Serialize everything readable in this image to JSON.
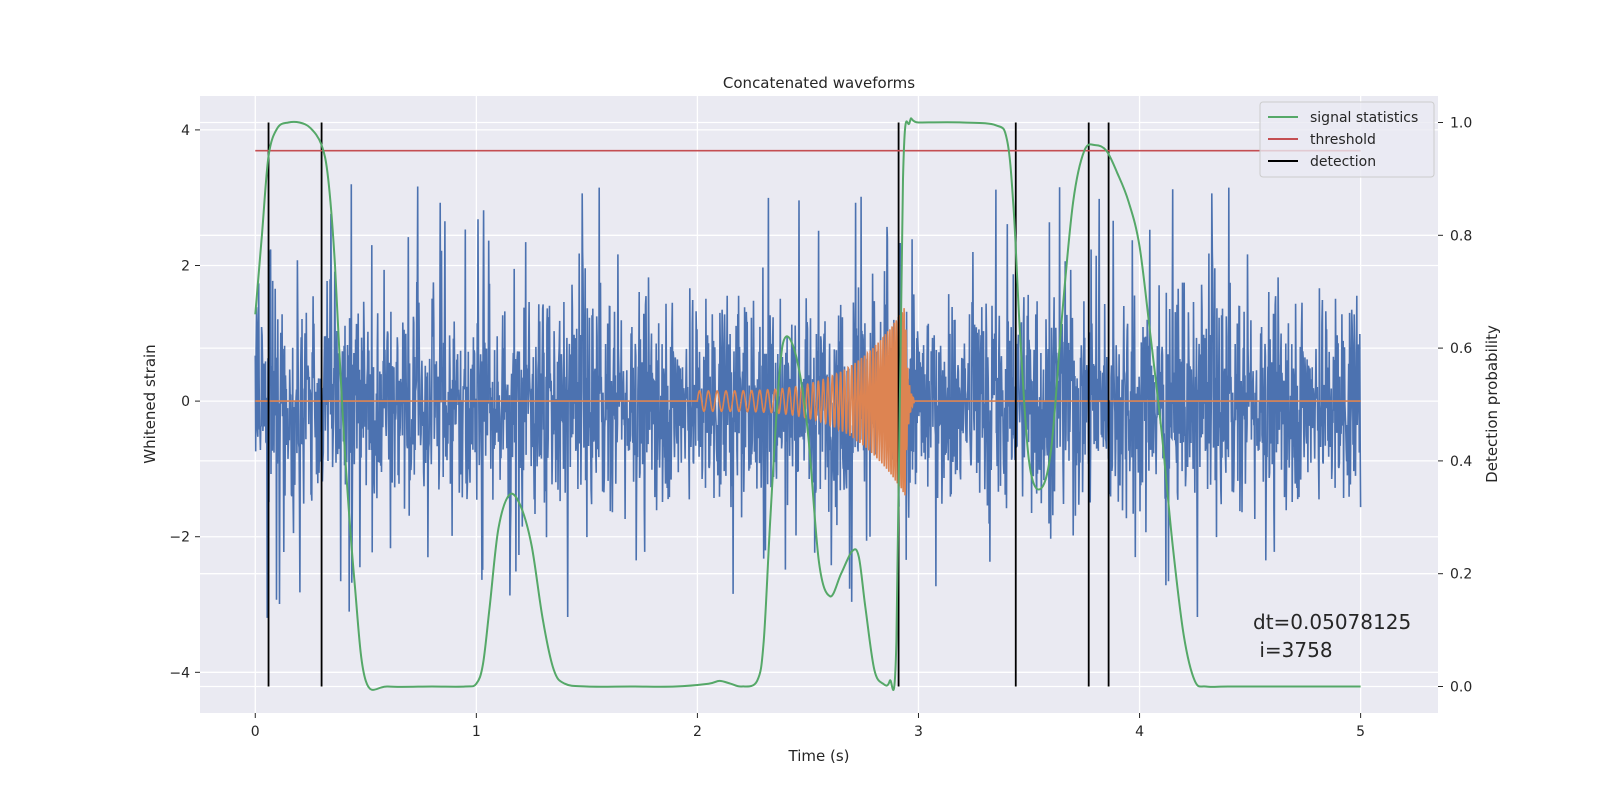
{
  "chart_data": {
    "type": "line",
    "title": "Concatenated waveforms",
    "xlabel": "Time (s)",
    "ylabel": "Whitened strain",
    "ylabel_right": "Detection probability",
    "xlim": [
      -0.25,
      5.35
    ],
    "ylim": [
      -4.6,
      4.5
    ],
    "ylim_right": [
      -0.047,
      1.047
    ],
    "x_ticks": [
      0,
      1,
      2,
      3,
      4,
      5
    ],
    "x_tick_labels": [
      "0",
      "1",
      "2",
      "3",
      "4",
      "5"
    ],
    "y_ticks": [
      -4,
      -2,
      0,
      2,
      4
    ],
    "y_tick_labels": [
      "−4",
      "−2",
      "0",
      "2",
      "4"
    ],
    "y_right_ticks": [
      0.0,
      0.2,
      0.4,
      0.6,
      0.8,
      1.0
    ],
    "y_right_tick_labels": [
      "0.0",
      "0.2",
      "0.4",
      "0.6",
      "0.8",
      "1.0"
    ],
    "grid": true,
    "legend_position": "top-right",
    "legend": [
      {
        "label": "signal statistics",
        "color": "#55a868"
      },
      {
        "label": "threshold",
        "color": "#c44e52"
      },
      {
        "label": "detection",
        "color": "#000000"
      }
    ],
    "colors": {
      "noise": "#4c72b0",
      "injection": "#dd8452",
      "signal_statistics": "#55a868",
      "threshold": "#c44e52",
      "detection": "#000000",
      "plot_background": "#eaeaf2",
      "grid": "#ffffff"
    },
    "series": [
      {
        "name": "",
        "axis": "left",
        "x_range": [
          0,
          5
        ],
        "envelope": {
          "core": 0.9,
          "peak_max": 4.1,
          "peak_min": -4.2
        }
      },
      {
        "name": "",
        "axis": "left",
        "kind": "chirp",
        "x_range": [
          2.0,
          2.98
        ],
        "amplitude_start": 0.15,
        "amplitude_peak": 1.4,
        "peak_time": 2.94,
        "frequency_start": 25,
        "frequency_end": 120
      },
      {
        "name": "signal statistics",
        "axis": "right",
        "x": [
          0.0,
          0.03,
          0.06,
          0.1,
          0.15,
          0.2,
          0.25,
          0.3,
          0.33,
          0.36,
          0.4,
          0.45,
          0.5,
          0.6,
          0.8,
          0.95,
          1.0,
          1.03,
          1.06,
          1.1,
          1.15,
          1.2,
          1.25,
          1.3,
          1.35,
          1.4,
          1.5,
          1.7,
          1.9,
          2.05,
          2.1,
          2.15,
          2.2,
          2.27,
          2.3,
          2.33,
          2.37,
          2.4,
          2.45,
          2.5,
          2.55,
          2.6,
          2.65,
          2.7,
          2.73,
          2.76,
          2.8,
          2.84,
          2.87,
          2.9,
          2.93,
          2.96,
          3.0,
          3.2,
          3.35,
          3.4,
          3.43,
          3.46,
          3.5,
          3.55,
          3.6,
          3.65,
          3.7,
          3.75,
          3.8,
          3.85,
          3.9,
          3.95,
          4.0,
          4.05,
          4.1,
          4.15,
          4.2,
          4.25,
          4.3,
          4.4,
          4.6,
          5.0
        ],
        "y": [
          0.66,
          0.8,
          0.94,
          0.99,
          1.0,
          1.0,
          0.99,
          0.96,
          0.9,
          0.75,
          0.45,
          0.18,
          0.01,
          0.0,
          0.0,
          0.0,
          0.005,
          0.04,
          0.14,
          0.28,
          0.34,
          0.32,
          0.25,
          0.12,
          0.03,
          0.005,
          0.0,
          0.0,
          0.0,
          0.005,
          0.01,
          0.005,
          0.0,
          0.01,
          0.08,
          0.3,
          0.55,
          0.62,
          0.58,
          0.45,
          0.22,
          0.16,
          0.2,
          0.24,
          0.23,
          0.14,
          0.03,
          0.005,
          0.01,
          0.08,
          0.9,
          1.0,
          1.0,
          1.0,
          0.995,
          0.97,
          0.85,
          0.62,
          0.4,
          0.35,
          0.42,
          0.66,
          0.86,
          0.95,
          0.96,
          0.95,
          0.91,
          0.86,
          0.78,
          0.62,
          0.45,
          0.25,
          0.09,
          0.01,
          0.0,
          0.0,
          0.0,
          0.0
        ]
      },
      {
        "name": "threshold",
        "axis": "right",
        "x": [
          0,
          5
        ],
        "y": [
          0.95,
          0.95
        ]
      },
      {
        "name": "detection",
        "axis": "right",
        "kind": "vlines",
        "x": [
          0.06,
          0.3,
          2.91,
          3.44,
          3.77,
          3.86
        ],
        "y_range": [
          0.0,
          1.0
        ]
      }
    ],
    "annotation": {
      "line1": "dt=0.05078125",
      "line2": " i=3758",
      "x": 4.5,
      "y": -3.3
    }
  }
}
